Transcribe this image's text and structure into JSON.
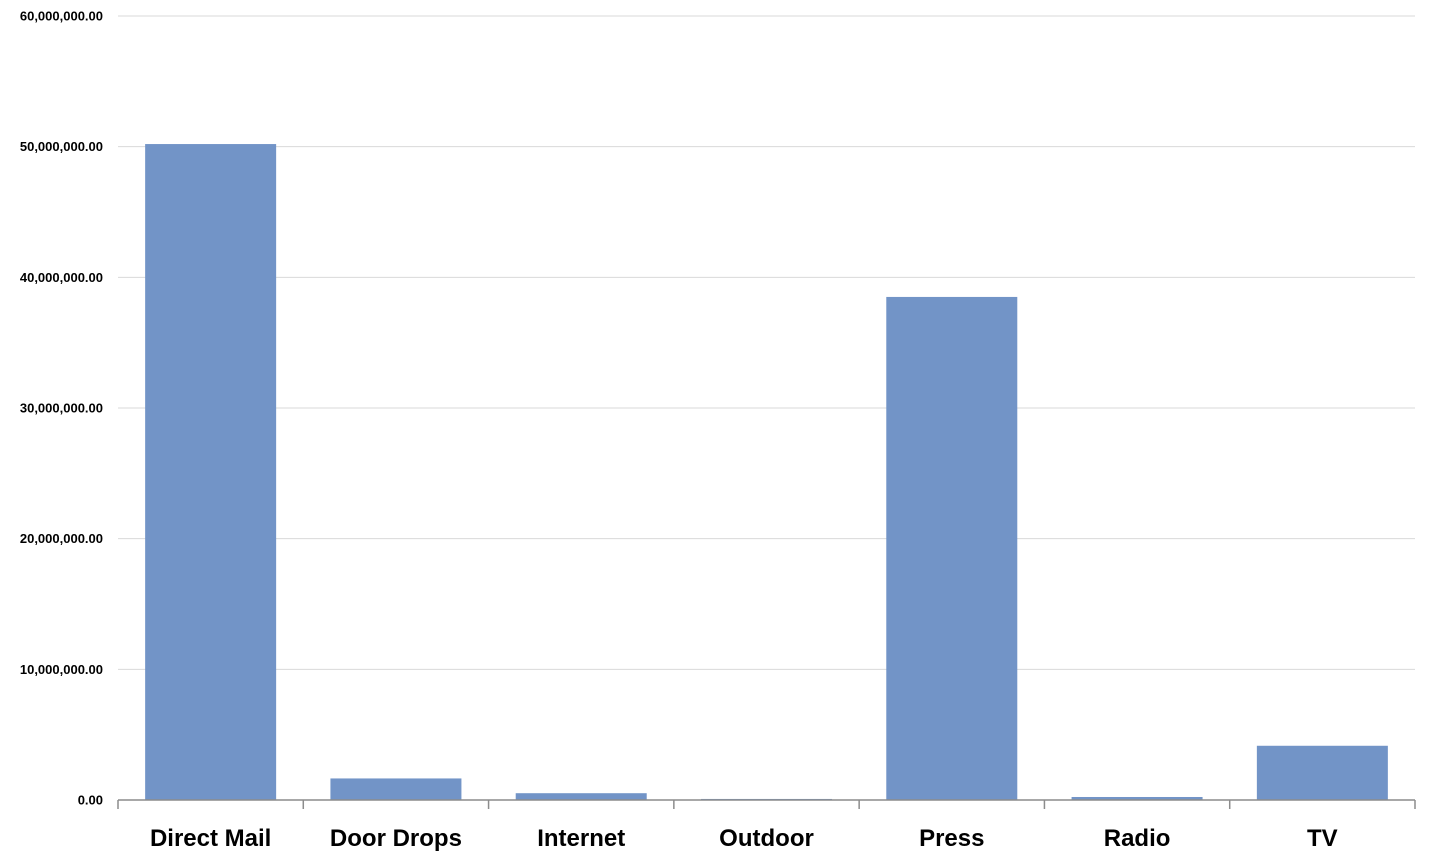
{
  "chart_data": {
    "type": "bar",
    "categories": [
      "Direct Mail",
      "Door Drops",
      "Internet",
      "Outdoor",
      "Press",
      "Radio",
      "TV"
    ],
    "series": [
      {
        "values": [
          50200000,
          1650000,
          520000,
          80000,
          38500000,
          230000,
          4150000
        ]
      }
    ],
    "ylim": [
      0,
      60000000
    ],
    "yticks": [
      0,
      10000000,
      20000000,
      30000000,
      40000000,
      50000000,
      60000000
    ],
    "ytick_labels": [
      "0.00",
      "10,000,000.00",
      "20,000,000.00",
      "30,000,000.00",
      "40,000,000.00",
      "50,000,000.00",
      "60,000,000.00"
    ],
    "grid": true,
    "legend": "none",
    "colors": {
      "bar": "#7294C7",
      "grid": "#D9D9D9",
      "axis": "#8C8C8C",
      "text": "#000000"
    }
  }
}
